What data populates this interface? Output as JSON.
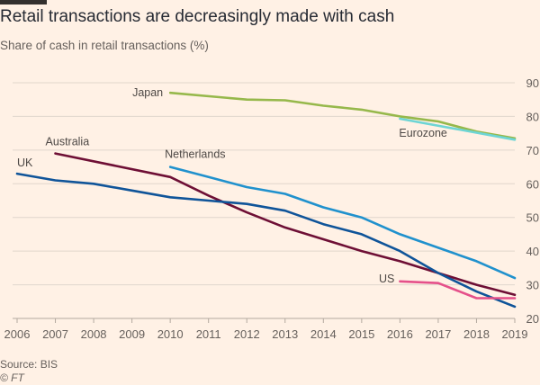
{
  "header": {
    "title": "Retail transactions are decreasingly made with cash",
    "subtitle": "Share of cash in retail transactions (%)"
  },
  "footer": {
    "source": "Source: BIS",
    "credit": "© FT"
  },
  "colors": {
    "background": "#fff1e5",
    "grid": "#e0d6cc",
    "axis_text": "#66605c"
  },
  "chart_data": {
    "type": "line",
    "title": "Retail transactions are decreasingly made with cash",
    "subtitle": "Share of cash in retail transactions (%)",
    "xlabel": "",
    "ylabel": "",
    "xlim": [
      2006,
      2019
    ],
    "ylim": [
      20,
      90
    ],
    "x_ticks": [
      2006,
      2007,
      2008,
      2009,
      2010,
      2011,
      2012,
      2013,
      2014,
      2015,
      2016,
      2017,
      2018,
      2019
    ],
    "y_ticks": [
      20,
      30,
      40,
      50,
      60,
      70,
      80,
      90
    ],
    "y_axis_side": "right",
    "grid": "horizontal",
    "legend": "inline-labels",
    "series": [
      {
        "name": "Japan",
        "color": "#96b84b",
        "label_anchor": "end",
        "label_dx": -8,
        "label_dy": 4,
        "points": [
          [
            2010,
            87
          ],
          [
            2012,
            85
          ],
          [
            2013,
            84.8
          ],
          [
            2014,
            83.2
          ],
          [
            2015,
            82
          ],
          [
            2016,
            80
          ],
          [
            2017,
            78.5
          ],
          [
            2018,
            75.5
          ],
          [
            2019,
            73.5
          ]
        ]
      },
      {
        "name": "Eurozone",
        "color": "#6ed5d5",
        "label_anchor": "start",
        "label_dx": -1,
        "label_dy": 20,
        "points": [
          [
            2016,
            79.3
          ],
          [
            2019,
            73.1
          ]
        ]
      },
      {
        "name": "Australia",
        "color": "#6e0f35",
        "label_anchor": "start",
        "label_dx": -11,
        "label_dy": -9,
        "points": [
          [
            2007,
            69
          ],
          [
            2010,
            62
          ],
          [
            2011,
            56.5
          ],
          [
            2012,
            51.5
          ],
          [
            2013,
            47
          ],
          [
            2014,
            43.5
          ],
          [
            2015,
            40
          ],
          [
            2016,
            37
          ],
          [
            2017,
            33.5
          ],
          [
            2018,
            30
          ],
          [
            2019,
            27
          ]
        ]
      },
      {
        "name": "UK",
        "color": "#0f5499",
        "label_anchor": "start",
        "label_dx": 0,
        "label_dy": -8,
        "points": [
          [
            2006,
            63
          ],
          [
            2007,
            61
          ],
          [
            2008,
            60
          ],
          [
            2009,
            58
          ],
          [
            2010,
            56
          ],
          [
            2011,
            55
          ],
          [
            2012,
            54
          ],
          [
            2013,
            52
          ],
          [
            2014,
            48
          ],
          [
            2015,
            45
          ],
          [
            2016,
            40
          ],
          [
            2017,
            33.5
          ],
          [
            2018,
            28
          ],
          [
            2019,
            23.5
          ]
        ]
      },
      {
        "name": "Netherlands",
        "color": "#2091cd",
        "label_anchor": "start",
        "label_dx": -6,
        "label_dy": -10,
        "points": [
          [
            2010,
            65
          ],
          [
            2011,
            62
          ],
          [
            2012,
            59
          ],
          [
            2013,
            57
          ],
          [
            2014,
            53
          ],
          [
            2015,
            50
          ],
          [
            2016,
            45
          ],
          [
            2017,
            41
          ],
          [
            2018,
            37
          ],
          [
            2019,
            32
          ]
        ]
      },
      {
        "name": "US",
        "color": "#e5508a",
        "label_anchor": "end",
        "label_dx": -6,
        "label_dy": 1,
        "points": [
          [
            2016,
            31
          ],
          [
            2017,
            30.5
          ],
          [
            2018,
            26
          ],
          [
            2019,
            26
          ]
        ]
      }
    ]
  }
}
